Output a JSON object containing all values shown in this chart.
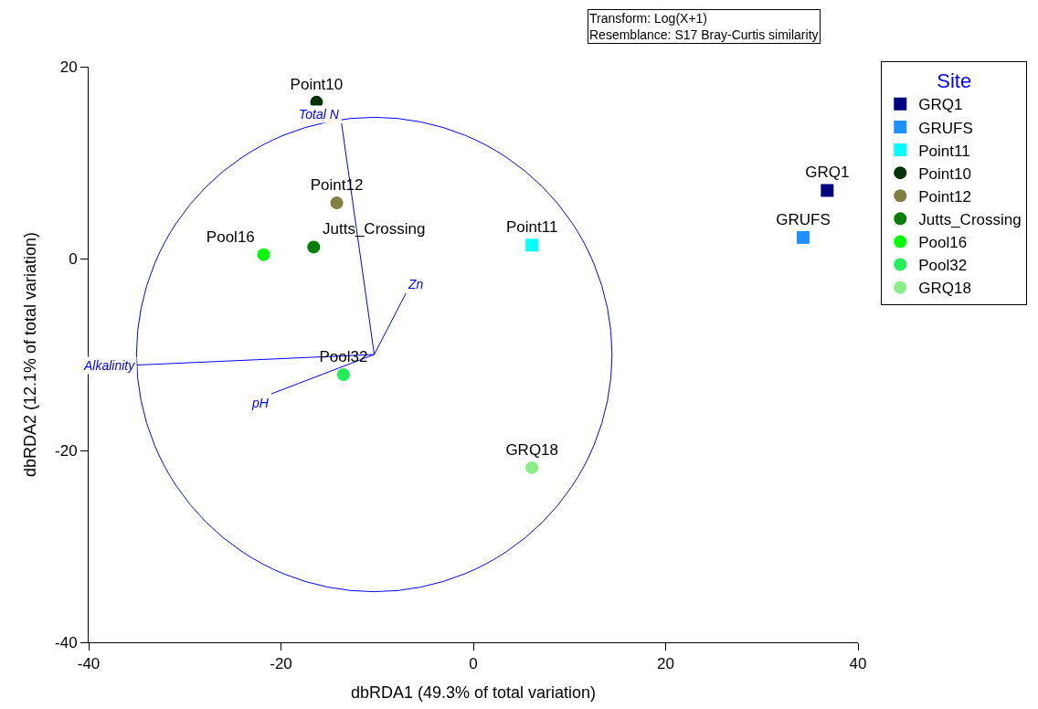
{
  "chart_data": {
    "type": "scatter",
    "xlabel": "dbRDA1 (49.3% of total variation)",
    "ylabel": "dbRDA2 (12.1% of total variation)",
    "legend_title": "Site",
    "legend": "top right",
    "grid": false,
    "xlim": [
      -40,
      40
    ],
    "xticks": [
      -40,
      -20,
      0,
      20,
      40
    ],
    "ylim": [
      -40,
      20
    ],
    "yticks": [
      -40,
      -20,
      0,
      20
    ],
    "annotations": [
      "Transform: Log(X+1)",
      "Resemblance: S17 Bray-Curtis similarity"
    ],
    "series": [
      {
        "name": "GRQ1",
        "marker": "square",
        "color": "#000080",
        "x": [
          36.8
        ],
        "values": [
          7.1
        ]
      },
      {
        "name": "GRUFS",
        "marker": "square",
        "color": "#1e8fff",
        "x": [
          34.3
        ],
        "values": [
          2.2
        ]
      },
      {
        "name": "Point11",
        "marker": "square",
        "color": "#00ffff",
        "x": [
          6.1
        ],
        "values": [
          1.4
        ]
      },
      {
        "name": "Point10",
        "marker": "circle",
        "color": "#003300",
        "x": [
          -16.3
        ],
        "values": [
          16.3
        ]
      },
      {
        "name": "Point12",
        "marker": "circle",
        "color": "#808040",
        "x": [
          -14.2
        ],
        "values": [
          5.8
        ]
      },
      {
        "name": "Jutts_Crossing",
        "marker": "circle",
        "color": "#008000",
        "x": [
          -16.6
        ],
        "values": [
          1.2
        ]
      },
      {
        "name": "Pool16",
        "marker": "circle",
        "color": "#00ff00",
        "x": [
          -21.8
        ],
        "values": [
          0.4
        ]
      },
      {
        "name": "Pool32",
        "marker": "circle",
        "color": "#22ee55",
        "x": [
          -13.5
        ],
        "values": [
          -12.1
        ]
      },
      {
        "name": "GRQ18",
        "marker": "circle",
        "color": "#88ee88",
        "x": [
          6.1
        ],
        "values": [
          -21.8
        ]
      },
      {
        "name": "Total N",
        "type": "line",
        "color": "#0000ff",
        "x": [
          -10.3,
          -13.7
        ],
        "values": [
          -10.0,
          14.1
        ]
      },
      {
        "name": "Zn",
        "type": "line",
        "color": "#0000ff",
        "x": [
          -10.3,
          -7.0
        ],
        "values": [
          -10.0,
          -3.6
        ]
      },
      {
        "name": "Alkalinity",
        "type": "line",
        "color": "#0000ff",
        "x": [
          -10.3,
          -35.0
        ],
        "values": [
          -10.0,
          -11.1
        ]
      },
      {
        "name": "pH",
        "type": "line",
        "color": "#0000ff",
        "x": [
          -10.3,
          -21.0
        ],
        "values": [
          -10.0,
          -14.1
        ]
      }
    ]
  }
}
